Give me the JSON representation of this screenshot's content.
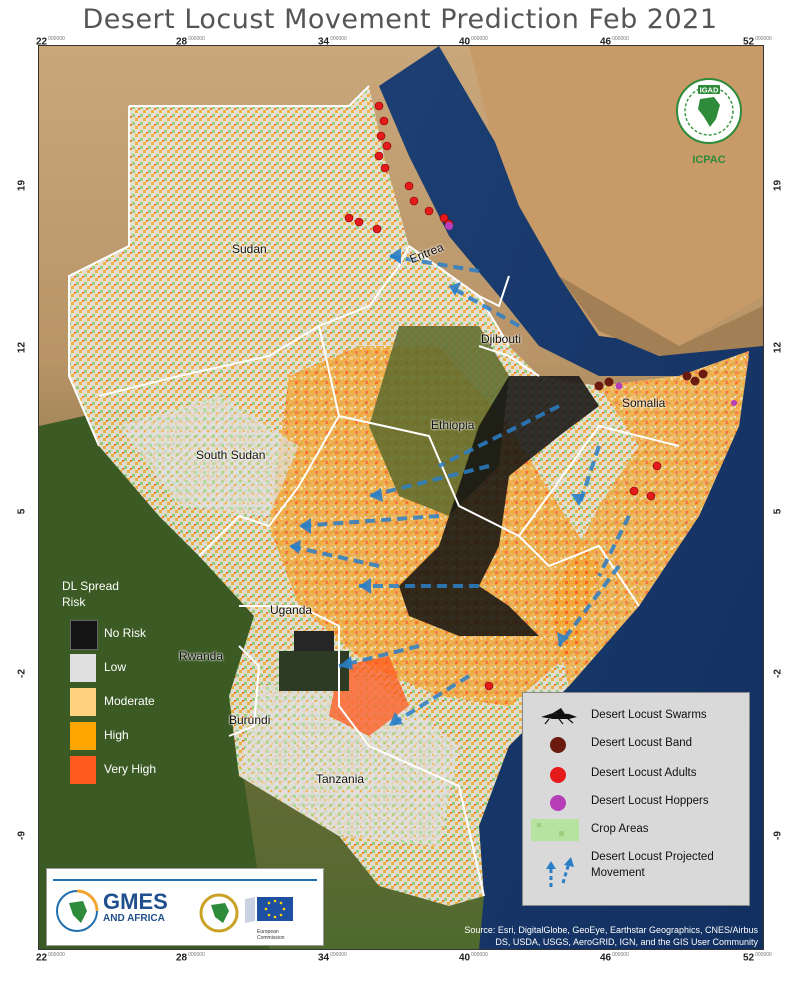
{
  "title": "Desert Locust Movement Prediction Feb 2021",
  "axis": {
    "lon_ticks": [
      "22",
      "28",
      "34",
      "40",
      "46",
      "52"
    ],
    "lat_ticks": [
      "19",
      "12",
      "5",
      "-2",
      "-9"
    ],
    "tick_suffix": "000000"
  },
  "countries": {
    "sudan": "Sudan",
    "eritrea": "Eritrea",
    "djibouti": "Djibouti",
    "somalia": "Somalia",
    "ethiopia": "Ethiopia",
    "south_sudan": "South Sudan",
    "uganda": "Uganda",
    "rwanda": "Rwanda",
    "burundi": "Burundi",
    "tanzania": "Tanzania"
  },
  "risk_legend": {
    "title_line1": "DL Spread",
    "title_line2": "Risk",
    "items": [
      {
        "label": "No Risk",
        "color": "#141414"
      },
      {
        "label": "Low",
        "color": "#e0e0e0"
      },
      {
        "label": "Moderate",
        "color": "#ffd27f"
      },
      {
        "label": "High",
        "color": "#ffa500"
      },
      {
        "label": "Very High",
        "color": "#ff5a1f"
      }
    ]
  },
  "symbol_legend": {
    "swarms": "Desert Locust Swarms",
    "band": "Desert Locust Band",
    "adults": "Desert Locust Adults",
    "hoppers": "Desert Locust Hoppers",
    "crop": "Crop Areas",
    "movement_line1": "Desert Locust Projected",
    "movement_line2": "Movement"
  },
  "symbol_colors": {
    "band": "#6b1a10",
    "adults": "#e51b1b",
    "hoppers": "#b63fb8",
    "crop": "#b7e3a0",
    "movement": "#2b7fc7"
  },
  "logos": {
    "igad": "IGAD",
    "icpac": "ICPAC",
    "gmes_line1": "GMES",
    "gmes_line2": "AND AFRICA",
    "eu_caption1": "European",
    "eu_caption2": "Commission"
  },
  "source_line1": "Source: Esri, DigitalGlobe, GeoEye, Earthstar Geographics, CNES/Airbus",
  "source_line2": "DS, USDA, USGS, AeroGRID, IGN, and the GIS User Community"
}
